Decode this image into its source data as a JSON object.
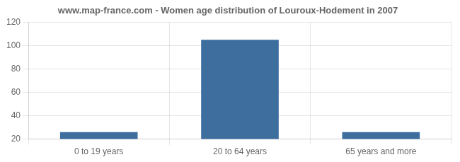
{
  "chart_data": {
    "type": "bar",
    "title": "www.map-france.com - Women age distribution of Louroux-Hodement in 2007",
    "categories": [
      "0 to 19 years",
      "20 to 64 years",
      "65 years and more"
    ],
    "values": [
      26,
      105,
      26
    ],
    "color": "#3d6e9e",
    "ylim": [
      20,
      120
    ],
    "yticks": [
      20,
      40,
      60,
      80,
      100,
      120
    ],
    "grid": true
  }
}
